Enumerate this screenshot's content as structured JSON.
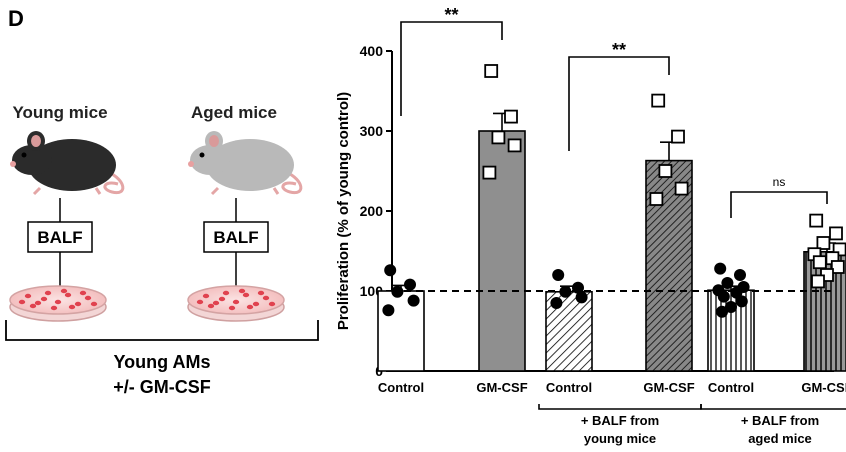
{
  "panel_label": "D",
  "schematic": {
    "young_label": "Young mice",
    "aged_label": "Aged mice",
    "balf_label": "BALF",
    "cells_label_line1": "Young AMs",
    "cells_label_line2": "+/- GM-CSF",
    "colors": {
      "young_mouse": "#2b2b2b",
      "aged_mouse": "#b9b9b9",
      "dish_cells": "#e0424f"
    }
  },
  "chart_data": {
    "type": "bar",
    "ylabel": "Proliferation (% of young control)",
    "ylim": [
      0,
      400
    ],
    "yticks": [
      0,
      100,
      200,
      300,
      400
    ],
    "reference_line": 100,
    "categories": [
      "Control",
      "GM-CSF",
      "Control",
      "GM-CSF",
      "Control",
      "GM-CSF"
    ],
    "group_labels": [
      {
        "line1": "+ BALF from",
        "line2": "young mice",
        "bars": [
          2,
          3
        ]
      },
      {
        "line1": "+ BALF from",
        "line2": "aged mice",
        "bars": [
          4,
          5
        ]
      }
    ],
    "values": [
      100,
      300,
      99,
      263,
      101,
      149
    ],
    "errors": [
      7,
      22,
      7,
      23,
      5,
      11
    ],
    "fills": [
      "white",
      "grey",
      "diag",
      "diag-dense",
      "vert",
      "vert-grey"
    ],
    "points": [
      [
        126,
        108,
        99,
        88,
        76
      ],
      [
        375,
        318,
        292,
        282,
        248
      ],
      [
        120,
        104,
        99,
        92,
        85
      ],
      [
        338,
        293,
        250,
        228,
        215
      ],
      [
        128,
        120,
        110,
        105,
        101,
        98,
        93,
        87,
        80,
        74
      ],
      [
        188,
        172,
        160,
        152,
        146,
        141,
        136,
        130,
        120,
        112
      ]
    ],
    "significance": [
      {
        "bars": [
          0,
          1
        ],
        "label": "**"
      },
      {
        "bars": [
          2,
          3
        ],
        "label": "**"
      },
      {
        "bars": [
          4,
          5
        ],
        "label": "ns"
      }
    ]
  }
}
